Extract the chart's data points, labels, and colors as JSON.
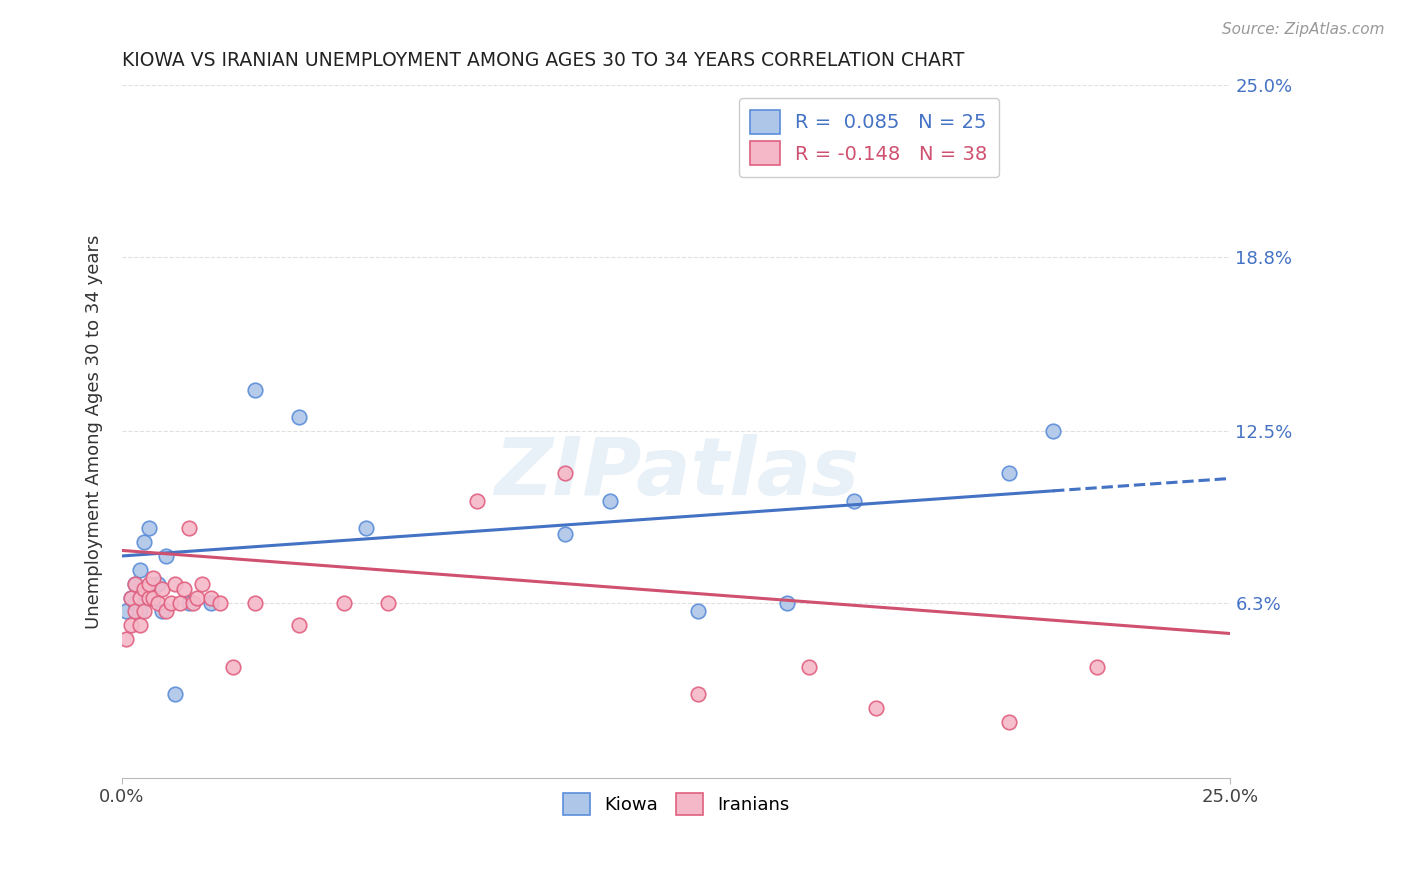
{
  "title": "KIOWA VS IRANIAN UNEMPLOYMENT AMONG AGES 30 TO 34 YEARS CORRELATION CHART",
  "source": "Source: ZipAtlas.com",
  "ylabel": "Unemployment Among Ages 30 to 34 years",
  "xlim": [
    0.0,
    0.25
  ],
  "ylim": [
    0.0,
    0.25
  ],
  "ytick_values": [
    0.063,
    0.125,
    0.188,
    0.25
  ],
  "right_ytick_labels": [
    "6.3%",
    "12.5%",
    "18.8%",
    "25.0%"
  ],
  "watermark_text": "ZIPatlas",
  "kiowa_fill": "#aec6e8",
  "kiowa_edge": "#5b8dd9",
  "iranians_fill": "#f5b8c8",
  "iranians_edge": "#e06080",
  "kiowa_line_color": "#4472c4",
  "iranians_line_color": "#d05070",
  "legend_kiowa_label": "R =  0.085   N = 25",
  "legend_iranians_label": "R = -0.148   N = 38",
  "background_color": "#ffffff",
  "grid_color": "#e0e0e0",
  "kiowa_x": [
    0.001,
    0.002,
    0.003,
    0.003,
    0.004,
    0.004,
    0.005,
    0.006,
    0.007,
    0.008,
    0.009,
    0.01,
    0.012,
    0.015,
    0.02,
    0.03,
    0.04,
    0.055,
    0.1,
    0.11,
    0.13,
    0.15,
    0.165,
    0.2,
    0.21
  ],
  "kiowa_y": [
    0.06,
    0.065,
    0.063,
    0.07,
    0.06,
    0.075,
    0.085,
    0.09,
    0.065,
    0.07,
    0.06,
    0.08,
    0.03,
    0.063,
    0.063,
    0.14,
    0.13,
    0.09,
    0.088,
    0.1,
    0.06,
    0.063,
    0.1,
    0.11,
    0.125
  ],
  "iranians_x": [
    0.001,
    0.002,
    0.002,
    0.003,
    0.003,
    0.004,
    0.004,
    0.005,
    0.005,
    0.006,
    0.006,
    0.007,
    0.007,
    0.008,
    0.009,
    0.01,
    0.011,
    0.012,
    0.013,
    0.014,
    0.015,
    0.016,
    0.017,
    0.018,
    0.02,
    0.022,
    0.025,
    0.03,
    0.04,
    0.05,
    0.06,
    0.08,
    0.1,
    0.13,
    0.155,
    0.17,
    0.2,
    0.22
  ],
  "iranians_y": [
    0.05,
    0.055,
    0.065,
    0.06,
    0.07,
    0.055,
    0.065,
    0.06,
    0.068,
    0.065,
    0.07,
    0.065,
    0.072,
    0.063,
    0.068,
    0.06,
    0.063,
    0.07,
    0.063,
    0.068,
    0.09,
    0.063,
    0.065,
    0.07,
    0.065,
    0.063,
    0.04,
    0.063,
    0.055,
    0.063,
    0.063,
    0.1,
    0.11,
    0.03,
    0.04,
    0.025,
    0.02,
    0.04
  ],
  "kiowa_trend": [
    0.08,
    0.108
  ],
  "iranians_trend": [
    0.082,
    0.052
  ],
  "trend_x": [
    0.0,
    0.25
  ]
}
